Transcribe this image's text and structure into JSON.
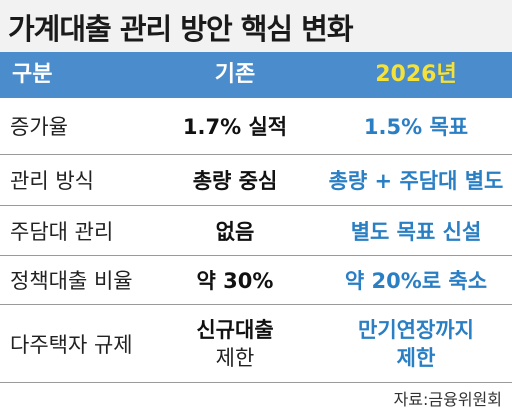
{
  "title": "가계대출 관리 방안 핵심 변화",
  "header": {
    "col1": "구분",
    "col2": "기존",
    "col3": "2026년"
  },
  "rows": [
    {
      "label": "증가율",
      "before": "1.7% 실적",
      "after": "1.5% 목표"
    },
    {
      "label": "관리 방식",
      "before": "총량 중심",
      "after": "총량 + 주담대 별도"
    },
    {
      "label": "주담대 관리",
      "before": "없음",
      "after": "별도 목표 신설"
    },
    {
      "label": "정책대출 비율",
      "before": "약 30%",
      "after": "약 20%로 축소"
    },
    {
      "label": "다주택자 규제",
      "before_line1": "신규대출",
      "before_line2": "제한",
      "after_line1": "만기연장까지",
      "after_line2": "제한"
    }
  ],
  "source": "자료:금융위원회",
  "colors": {
    "header_bg": "#4a8ccc",
    "header_text": "#ffffff",
    "highlight_year": "#f4e23a",
    "new_value_text": "#2a7fc4"
  }
}
